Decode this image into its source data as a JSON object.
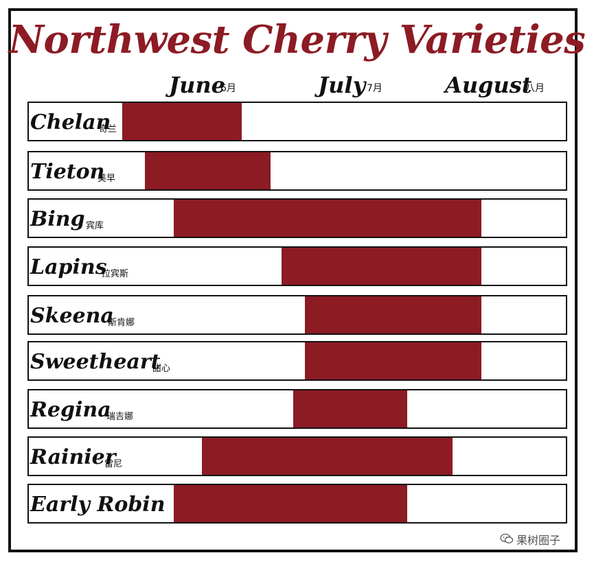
{
  "chart_data": {
    "type": "bar",
    "title": "Northwest Cherry Varieties",
    "months": [
      {
        "label": "June",
        "cn": "6月"
      },
      {
        "label": "July",
        "cn": "7月"
      },
      {
        "label": "August",
        "cn": "八月"
      }
    ],
    "categories": [
      {
        "name": "Chelan",
        "cn": "奇兰",
        "start": "Jun 1",
        "end": "Jun 22"
      },
      {
        "name": "Tieton",
        "cn": "美早",
        "start": "Jun 5",
        "end": "Jun 27"
      },
      {
        "name": "Bing",
        "cn": "宾库",
        "start": "Jun 10",
        "end": "Aug 3"
      },
      {
        "name": "Lapins",
        "cn": "拉宾斯",
        "start": "Jun 29",
        "end": "Aug 3"
      },
      {
        "name": "Skeena",
        "cn": "斯肯娜",
        "start": "Jul 3",
        "end": "Aug 3"
      },
      {
        "name": "Sweetheart",
        "cn": "甜心",
        "start": "Jul 3",
        "end": "Aug 3"
      },
      {
        "name": "Regina",
        "cn": "瑞吉娜",
        "start": "Jul 1",
        "end": "Jul 21"
      },
      {
        "name": "Rainier",
        "cn": "雷尼",
        "start": "Jun 15",
        "end": "Jul 29"
      },
      {
        "name": "Early Robin",
        "cn": "",
        "start": "Jun 10",
        "end": "Jul 21"
      }
    ],
    "bar_color": "#8c1b24",
    "title_color": "#8c1b24"
  },
  "watermark": {
    "text": "果树圈子",
    "icon": "wechat-icon"
  }
}
